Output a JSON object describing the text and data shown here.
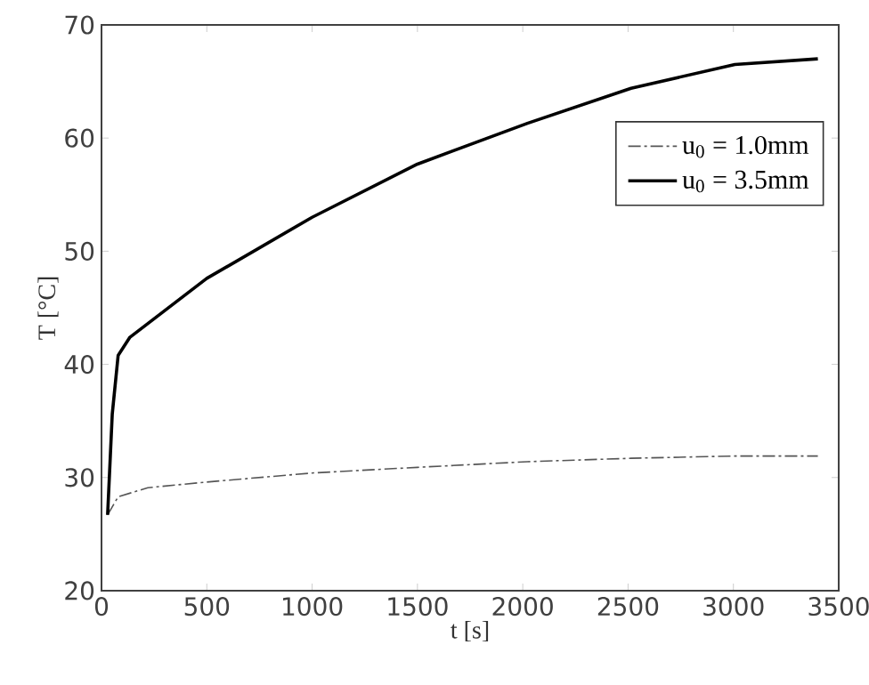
{
  "chart_data": {
    "type": "line",
    "xlabel": "t [s]",
    "ylabel": "T [°C]",
    "xlim": [
      0,
      3500
    ],
    "ylim": [
      20,
      70
    ],
    "xticks": [
      0,
      500,
      1000,
      1500,
      2000,
      2500,
      3000,
      3500
    ],
    "yticks": [
      20,
      30,
      40,
      50,
      60,
      70
    ],
    "legend": "top right",
    "marker": "none",
    "grid": false,
    "series": [
      {
        "name": "u$_{0}$ = 1.0mm",
        "color": "#555555",
        "line_style": "dashdot",
        "x": [
          29,
          79,
          220,
          500,
          1000,
          1500,
          2022,
          2514,
          3007,
          3401
        ],
        "values": [
          26.7,
          28.3,
          29.1,
          29.6,
          30.4,
          30.9,
          31.4,
          31.7,
          31.9,
          31.9
        ]
      },
      {
        "name": "u$_{0}$ = 3.5mm",
        "color": "#000000",
        "line_style": "solid",
        "x": [
          29,
          51,
          79,
          135,
          500,
          1000,
          1500,
          2022,
          2514,
          3007,
          3401
        ],
        "values": [
          26.7,
          35.6,
          40.8,
          42.4,
          47.6,
          53.0,
          57.7,
          61.3,
          64.4,
          66.5,
          67.0
        ]
      }
    ]
  }
}
